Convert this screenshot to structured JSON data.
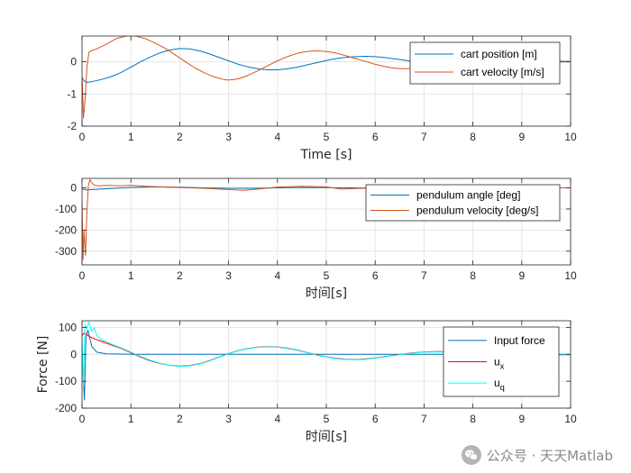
{
  "colors": {
    "blue": "#0072BD",
    "orange": "#D95319",
    "red": "#FF0000",
    "cyan": "#00FFFF",
    "grid": "#E6E6E6",
    "axes": "#262626"
  },
  "watermark": {
    "text": "公众号 · 天天Matlab",
    "icon": "wechat-logo-icon"
  },
  "chart_data": [
    {
      "type": "line",
      "xlabel": "Time [s]",
      "ylabel": "",
      "xlim": [
        0,
        10
      ],
      "ylim": [
        -2,
        0.8
      ],
      "xticks": [
        0,
        1,
        2,
        3,
        4,
        5,
        6,
        7,
        8,
        9,
        10
      ],
      "yticks": [
        -2,
        -1,
        0
      ],
      "grid": true,
      "legend": "top-right",
      "series": [
        {
          "name": "cart position [m]",
          "color": "blue",
          "x": [
            0,
            0.05,
            0.1,
            0.2,
            0.4,
            0.6,
            0.8,
            1.0,
            1.2,
            1.4,
            1.6,
            1.8,
            2.0,
            2.2,
            2.4,
            2.6,
            2.8,
            3.0,
            3.2,
            3.4,
            3.6,
            3.8,
            4.0,
            4.2,
            4.4,
            4.6,
            4.8,
            5.0,
            5.2,
            5.4,
            5.6,
            5.8,
            6.0,
            6.2,
            6.4,
            6.6,
            6.8,
            7.0,
            7.2,
            7.4,
            7.6,
            7.8,
            8.0,
            8.5,
            9.0,
            9.5,
            10.0
          ],
          "y": [
            -0.5,
            -0.6,
            -0.64,
            -0.62,
            -0.55,
            -0.46,
            -0.33,
            -0.17,
            0.0,
            0.15,
            0.28,
            0.37,
            0.41,
            0.4,
            0.34,
            0.25,
            0.14,
            0.03,
            -0.08,
            -0.16,
            -0.22,
            -0.25,
            -0.25,
            -0.22,
            -0.17,
            -0.1,
            -0.03,
            0.04,
            0.1,
            0.14,
            0.16,
            0.17,
            0.16,
            0.13,
            0.09,
            0.05,
            0.0,
            -0.04,
            -0.07,
            -0.09,
            -0.1,
            -0.09,
            -0.07,
            -0.02,
            0.02,
            0.03,
            0.01
          ]
        },
        {
          "name": "cart velocity [m/s]",
          "color": "orange",
          "x": [
            0,
            0.03,
            0.06,
            0.1,
            0.14,
            0.2,
            0.3,
            0.5,
            0.7,
            0.9,
            1.0,
            1.1,
            1.3,
            1.5,
            1.7,
            1.9,
            2.1,
            2.3,
            2.5,
            2.7,
            2.9,
            3.0,
            3.2,
            3.4,
            3.6,
            3.8,
            4.0,
            4.2,
            4.4,
            4.6,
            4.8,
            5.0,
            5.2,
            5.4,
            5.6,
            5.8,
            6.0,
            6.2,
            6.4,
            6.6,
            6.8,
            7.0,
            7.2,
            7.5,
            8.0,
            8.5,
            9.0,
            9.5,
            10.0
          ],
          "y": [
            -0.4,
            -1.75,
            -1.2,
            -0.2,
            0.3,
            0.35,
            0.4,
            0.55,
            0.72,
            0.8,
            0.82,
            0.8,
            0.72,
            0.58,
            0.42,
            0.22,
            0.02,
            -0.18,
            -0.34,
            -0.47,
            -0.55,
            -0.57,
            -0.53,
            -0.42,
            -0.28,
            -0.12,
            0.03,
            0.16,
            0.26,
            0.32,
            0.34,
            0.32,
            0.27,
            0.19,
            0.1,
            0.01,
            -0.08,
            -0.15,
            -0.2,
            -0.22,
            -0.2,
            -0.16,
            -0.1,
            -0.02,
            0.08,
            0.05,
            0.0,
            -0.02,
            0.0
          ]
        }
      ]
    },
    {
      "type": "line",
      "xlabel": "时间[s]",
      "ylabel": "",
      "xlim": [
        0,
        10
      ],
      "ylim": [
        -365,
        45
      ],
      "xticks": [
        0,
        1,
        2,
        3,
        4,
        5,
        6,
        7,
        8,
        9,
        10
      ],
      "yticks": [
        -300,
        -200,
        -100,
        0
      ],
      "grid": true,
      "legend": "top-right",
      "series": [
        {
          "name": "pendulum angle [deg]",
          "color": "blue",
          "x": [
            0,
            0.1,
            0.2,
            0.5,
            1.0,
            1.5,
            2.0,
            2.5,
            3.0,
            3.5,
            4.0,
            4.5,
            5.0,
            5.5,
            6.0,
            7.0,
            8.0,
            9.0,
            10.0
          ],
          "y": [
            -5,
            -10,
            -8,
            -4,
            2,
            5,
            3,
            0,
            -2,
            -2,
            0,
            2,
            1,
            0,
            -1,
            0,
            1,
            0,
            0
          ]
        },
        {
          "name": "pendulum velocity [deg/s]",
          "color": "orange",
          "x": [
            0,
            0.02,
            0.04,
            0.07,
            0.1,
            0.13,
            0.16,
            0.2,
            0.25,
            0.35,
            0.5,
            0.8,
            1.0,
            1.3,
            1.6,
            2.0,
            2.5,
            3.0,
            3.3,
            3.6,
            4.0,
            4.5,
            5.0,
            5.3,
            5.6,
            6.0,
            7.0,
            8.0,
            9.0,
            10.0
          ],
          "y": [
            -60,
            -340,
            -200,
            -320,
            -120,
            10,
            40,
            25,
            12,
            10,
            12,
            10,
            12,
            8,
            5,
            2,
            -2,
            -8,
            -12,
            -6,
            4,
            8,
            5,
            -6,
            -3,
            0,
            2,
            -1,
            0,
            0
          ]
        }
      ]
    },
    {
      "type": "line",
      "xlabel": "时间[s]",
      "ylabel": "Force [N]",
      "xlim": [
        0,
        10
      ],
      "ylim": [
        -200,
        125
      ],
      "xticks": [
        0,
        1,
        2,
        3,
        4,
        5,
        6,
        7,
        8,
        9,
        10
      ],
      "yticks": [
        -200,
        -100,
        0,
        100
      ],
      "grid": true,
      "legend": "top-right",
      "series": [
        {
          "name": "Input force",
          "color": "blue",
          "x": [
            0,
            0.05,
            0.08,
            0.12,
            0.2,
            0.3,
            0.5,
            1.0,
            2.0,
            3.0,
            4.0,
            5.0,
            6.0,
            7.0,
            8.0,
            9.0,
            10.0
          ],
          "y": [
            0,
            -170,
            60,
            90,
            30,
            8,
            2,
            0,
            0,
            0,
            0,
            0,
            0,
            0,
            0,
            0,
            0
          ]
        },
        {
          "name": "u_x",
          "color": "red",
          "x": [
            0,
            0.05,
            0.1,
            0.2,
            0.4,
            0.6,
            0.8,
            1.0,
            1.2,
            1.4,
            1.6,
            1.8,
            2.0,
            2.2,
            2.4,
            2.6,
            2.8,
            3.0,
            3.2,
            3.4,
            3.6,
            3.8,
            4.0,
            4.2,
            4.4,
            4.6,
            4.8,
            5.0,
            5.2,
            5.4,
            5.6,
            5.8,
            6.0,
            6.2,
            6.4,
            6.6,
            6.8,
            7.0,
            7.3,
            7.6,
            8.0,
            8.5,
            9.0,
            9.5,
            10.0
          ],
          "y": [
            70,
            80,
            72,
            62,
            48,
            35,
            22,
            6,
            -10,
            -24,
            -34,
            -41,
            -44,
            -42,
            -35,
            -24,
            -10,
            3,
            14,
            22,
            27,
            29,
            28,
            23,
            16,
            7,
            -2,
            -9,
            -15,
            -18,
            -19,
            -17,
            -13,
            -8,
            -3,
            2,
            6,
            9,
            10,
            9,
            6,
            1,
            -2,
            -3,
            -2
          ]
        },
        {
          "name": "u_q",
          "color": "cyan",
          "x": [
            0,
            0.03,
            0.06,
            0.1,
            0.14,
            0.2,
            0.25,
            0.3,
            0.4,
            0.6,
            0.8,
            1.0,
            1.2,
            1.4,
            1.6,
            1.8,
            2.0,
            2.2,
            2.4,
            2.6,
            2.8,
            3.0,
            3.2,
            3.4,
            3.6,
            3.8,
            4.0,
            4.2,
            4.4,
            4.6,
            4.8,
            5.0,
            5.2,
            5.4,
            5.6,
            5.8,
            6.0,
            6.2,
            6.4,
            6.6,
            6.8,
            7.0,
            7.3,
            7.6,
            8.0,
            8.5,
            9.0,
            9.5,
            10.0
          ],
          "y": [
            60,
            -120,
            110,
            95,
            120,
            85,
            100,
            70,
            55,
            38,
            24,
            8,
            -8,
            -22,
            -33,
            -41,
            -45,
            -43,
            -36,
            -25,
            -11,
            2,
            13,
            21,
            26,
            28,
            27,
            22,
            15,
            6,
            -3,
            -10,
            -16,
            -19,
            -20,
            -18,
            -14,
            -9,
            -4,
            1,
            5,
            8,
            9,
            8,
            5,
            0,
            -3,
            -4,
            -2
          ]
        }
      ]
    }
  ]
}
